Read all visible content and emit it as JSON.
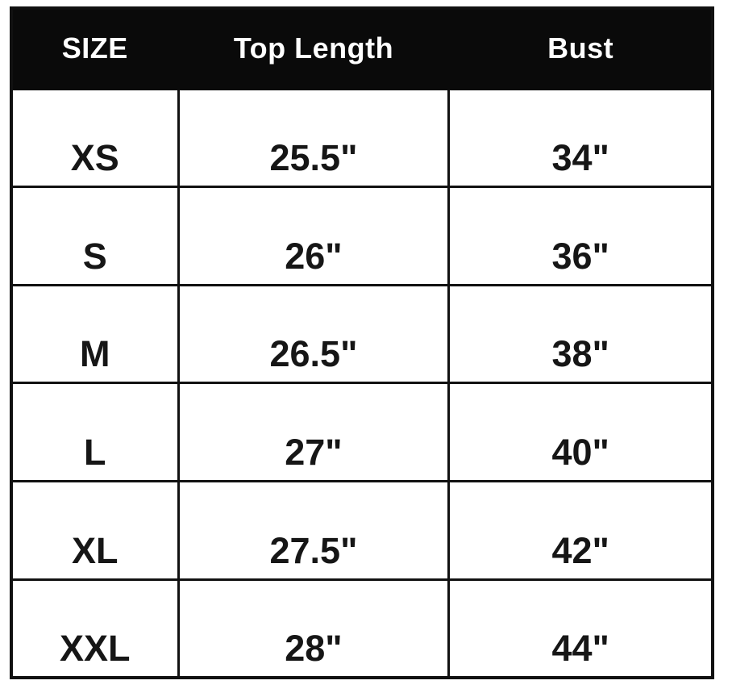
{
  "size_chart": {
    "columns": [
      {
        "label": "SIZE"
      },
      {
        "label": "Top Length"
      },
      {
        "label": "Bust"
      }
    ],
    "rows": [
      {
        "size": "XS",
        "top_length": "25.5\"",
        "bust": "34\""
      },
      {
        "size": "S",
        "top_length": "26\"",
        "bust": "36\""
      },
      {
        "size": "M",
        "top_length": "26.5\"",
        "bust": "38\""
      },
      {
        "size": "L",
        "top_length": "27\"",
        "bust": "40\""
      },
      {
        "size": "XL",
        "top_length": "27.5\"",
        "bust": "42\""
      },
      {
        "size": "XXL",
        "top_length": "28\"",
        "bust": "44\""
      }
    ]
  },
  "colors": {
    "header_background": "#0a0a0a",
    "header_text": "#ffffff",
    "cell_background": "#ffffff",
    "cell_text": "#161616",
    "border": "#111111",
    "page_background": "#ffffff"
  },
  "chart_data": {
    "type": "table",
    "columns": [
      "SIZE",
      "Top Length",
      "Bust"
    ],
    "rows": [
      [
        "XS",
        "25.5\"",
        "34\""
      ],
      [
        "S",
        "26\"",
        "36\""
      ],
      [
        "M",
        "26.5\"",
        "38\""
      ],
      [
        "L",
        "27\"",
        "40\""
      ],
      [
        "XL",
        "27.5\"",
        "42\""
      ],
      [
        "XXL",
        "28\"",
        "44\""
      ]
    ],
    "sizes": [
      "XS",
      "S",
      "M",
      "L",
      "XL",
      "XXL"
    ],
    "top_length_inches": [
      25.5,
      26,
      26.5,
      27,
      27.5,
      28
    ],
    "bust_inches": [
      34,
      36,
      38,
      40,
      42,
      44
    ],
    "units": "inches",
    "layout_hints": {
      "header_style": "black-band-white-text",
      "grid": "on",
      "cell_text_vertical_position": "low"
    }
  }
}
